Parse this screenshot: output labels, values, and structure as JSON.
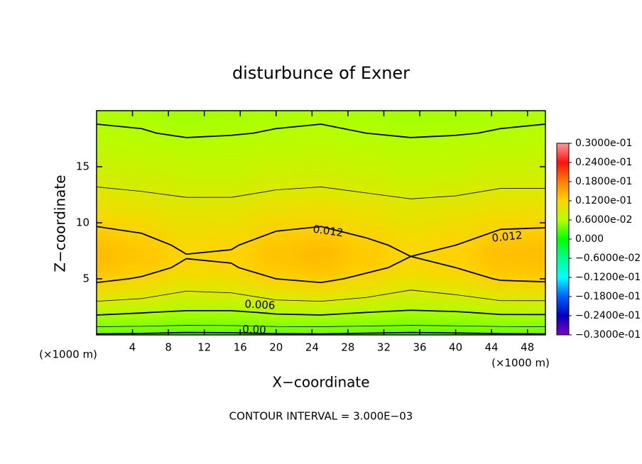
{
  "chart_data": {
    "type": "contour",
    "title": "disturbunce of Exner",
    "x_label": "X−coordinate",
    "y_label": "Z−coordinate",
    "x_unit_left": "(×1000 m)",
    "x_unit_right": "(×1000 m)",
    "annotation": "CONTOUR INTERVAL = 3.000E−03",
    "xlim": [
      0,
      50
    ],
    "ylim": [
      0,
      20
    ],
    "xticks": [
      4,
      8,
      12,
      16,
      20,
      24,
      28,
      32,
      36,
      40,
      44,
      48
    ],
    "yticks": [
      5,
      10,
      15
    ],
    "x": [
      0,
      5,
      10,
      15,
      20,
      25,
      30,
      35,
      40,
      45,
      50
    ],
    "z": [
      0,
      1,
      2,
      3,
      4,
      5,
      6,
      7,
      8,
      10,
      12,
      14,
      16,
      18,
      20
    ],
    "values": [
      [
        -0.0004,
        -0.0006,
        -0.001,
        -0.0009,
        -0.0005,
        -0.0004,
        -0.0007,
        -0.001,
        -0.0008,
        -0.0005,
        -0.0004
      ],
      [
        0.0043,
        0.0041,
        0.0037,
        0.0038,
        0.0042,
        0.0043,
        0.004,
        0.0037,
        0.0039,
        0.0042,
        0.0043
      ],
      [
        0.0065,
        0.0061,
        0.0056,
        0.0056,
        0.0063,
        0.0065,
        0.006,
        0.0055,
        0.0058,
        0.0064,
        0.0064
      ],
      [
        0.009,
        0.0086,
        0.0081,
        0.0081,
        0.0088,
        0.009,
        0.0085,
        0.008,
        0.0083,
        0.0089,
        0.0089
      ],
      [
        0.011,
        0.0103,
        0.0091,
        0.0093,
        0.0105,
        0.011,
        0.01,
        0.009,
        0.0095,
        0.0107,
        0.0109
      ],
      [
        0.0125,
        0.0118,
        0.0106,
        0.0108,
        0.012,
        0.0125,
        0.0115,
        0.0105,
        0.011,
        0.0122,
        0.0124
      ],
      [
        0.0135,
        0.0128,
        0.0116,
        0.0118,
        0.013,
        0.0135,
        0.0125,
        0.0115,
        0.012,
        0.0132,
        0.0134
      ],
      [
        0.014,
        0.0133,
        0.0121,
        0.0123,
        0.0135,
        0.014,
        0.013,
        0.012,
        0.0125,
        0.0137,
        0.0139
      ],
      [
        0.0135,
        0.0128,
        0.0116,
        0.0118,
        0.013,
        0.0135,
        0.0125,
        0.0115,
        0.012,
        0.0132,
        0.0134
      ],
      [
        0.0117,
        0.0113,
        0.0104,
        0.0105,
        0.0114,
        0.0117,
        0.011,
        0.0103,
        0.0107,
        0.0115,
        0.0116
      ],
      [
        0.0099,
        0.0096,
        0.0092,
        0.0092,
        0.0097,
        0.0099,
        0.0095,
        0.0091,
        0.0093,
        0.0098,
        0.0098
      ],
      [
        0.0084,
        0.0081,
        0.0077,
        0.0077,
        0.0082,
        0.0084,
        0.008,
        0.0076,
        0.0078,
        0.0083,
        0.0083
      ],
      [
        0.0072,
        0.0071,
        0.0068,
        0.0069,
        0.0071,
        0.0072,
        0.007,
        0.0068,
        0.0069,
        0.0071,
        0.0072
      ],
      [
        0.0062,
        0.0061,
        0.0058,
        0.0059,
        0.0061,
        0.0062,
        0.006,
        0.0058,
        0.0059,
        0.0061,
        0.0062
      ],
      [
        0.0057,
        0.0056,
        0.0053,
        0.0054,
        0.0056,
        0.0057,
        0.0055,
        0.0053,
        0.0054,
        0.0056,
        0.0057
      ]
    ],
    "contour_levels": [
      0,
      0.003,
      0.006,
      0.009,
      0.012
    ],
    "contour_labels": [
      "0.012",
      "0.012",
      "0.006",
      "0.00"
    ],
    "colorbar": {
      "ticks": [
        {
          "value": 0.03,
          "label": "0.3000e-01"
        },
        {
          "value": 0.024,
          "label": "0.2400e-01"
        },
        {
          "value": 0.018,
          "label": "0.1800e-01"
        },
        {
          "value": 0.012,
          "label": "0.1200e-01"
        },
        {
          "value": 0.006,
          "label": "0.6000e-02"
        },
        {
          "value": 0,
          "label": "0.000"
        },
        {
          "value": -0.006,
          "label": "−0.6000e-02"
        },
        {
          "value": -0.012,
          "label": "−0.1200e-01"
        },
        {
          "value": -0.018,
          "label": "−0.1800e-01"
        },
        {
          "value": -0.024,
          "label": "−0.2400e-01"
        },
        {
          "value": -0.03,
          "label": "−0.3000e-01"
        }
      ],
      "colors": [
        "#ff9a9a",
        "#ff1010",
        "#ff8000",
        "#ffd400",
        "#b4ff00",
        "#00ff00",
        "#00ff90",
        "#00ffff",
        "#0060ff",
        "#0000c0",
        "#8000c0"
      ]
    }
  }
}
